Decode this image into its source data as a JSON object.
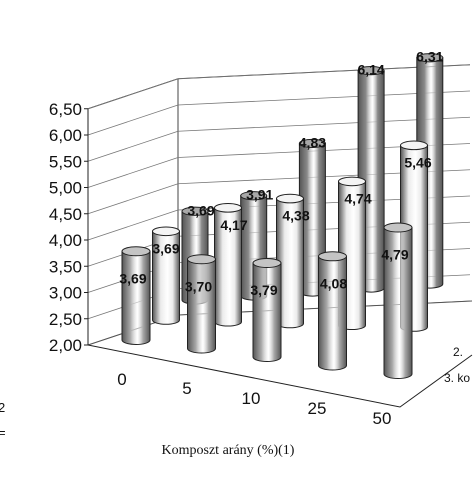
{
  "chart_data": {
    "type": "bar",
    "subtype": "3d-cylinder",
    "categories": [
      "0",
      "5",
      "10",
      "25",
      "50"
    ],
    "xlabel": "Komposzt arány (%)(1)",
    "ylim": [
      2.0,
      6.5
    ],
    "y_ticks": [
      "2,00",
      "2,50",
      "3,00",
      "3,50",
      "4,00",
      "4,50",
      "5,00",
      "5,50",
      "6,00",
      "6,50"
    ],
    "grid": true,
    "series": [
      {
        "values": [
          "3,69",
          "3,70",
          "3,79",
          "4,08",
          "4,79"
        ],
        "fill": "#a9a9a9"
      },
      {
        "name_visible": "2.",
        "values": [
          "3,69",
          "4,17",
          "4,38",
          "4,74",
          "5,46"
        ],
        "fill": "#ebebeb"
      },
      {
        "name_visible": "3. ko",
        "values": [
          "3,69",
          "3,91",
          "4,83",
          "6,14",
          "6,31"
        ],
        "fill": "#8a8a8a"
      }
    ],
    "legend_fragments": [
      "2.",
      "3. ko"
    ],
    "cut_text": [
      "2",
      "="
    ]
  }
}
